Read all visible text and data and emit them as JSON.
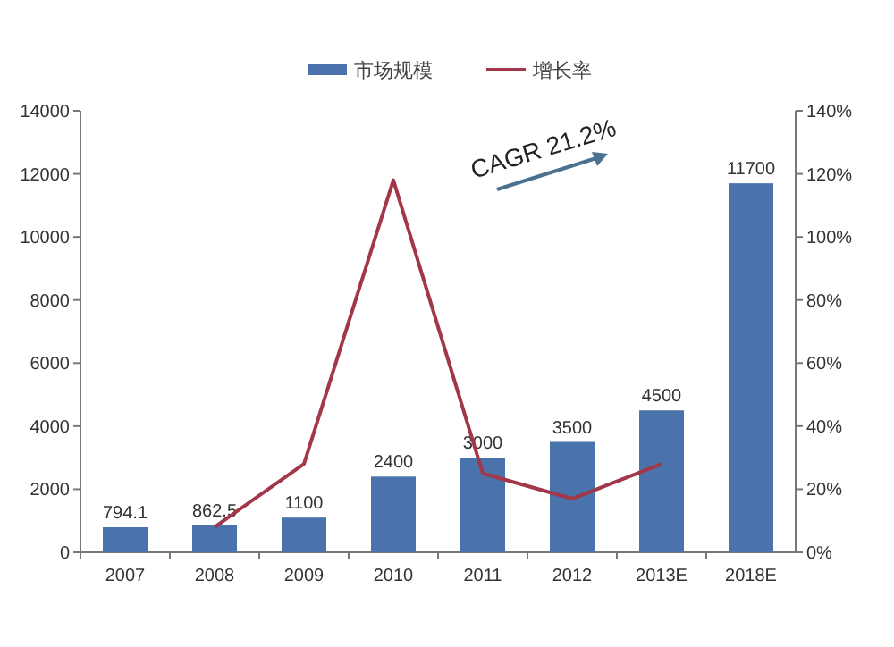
{
  "chart_data": {
    "type": "bar",
    "categories": [
      "2007",
      "2008",
      "2009",
      "2010",
      "2011",
      "2012",
      "2013E",
      "2018E"
    ],
    "series": [
      {
        "name": "市场规模",
        "color": "#4a72ab",
        "values": [
          794.1,
          862.5,
          1100,
          2400,
          3000,
          3500,
          4500,
          11700
        ],
        "value_labels": [
          "794.1",
          "862.5",
          "1100",
          "2400",
          "3000",
          "3500",
          "4500",
          "11700"
        ]
      },
      {
        "name": "增长率",
        "type": "line",
        "axis": "y2",
        "color": "#a3374a",
        "values": [
          null,
          8,
          28,
          118,
          25,
          17,
          28,
          null
        ]
      }
    ],
    "ylim": [
      0,
      14000
    ],
    "yticks": [
      0,
      2000,
      4000,
      6000,
      8000,
      10000,
      12000,
      14000
    ],
    "y2lim": [
      0,
      140
    ],
    "y2ticks": [
      {
        "value": 0,
        "label": "0%"
      },
      {
        "value": 20,
        "label": "20%"
      },
      {
        "value": 40,
        "label": "40%"
      },
      {
        "value": 60,
        "label": "60%"
      },
      {
        "value": 80,
        "label": "80%"
      },
      {
        "value": 100,
        "label": "100%"
      },
      {
        "value": 120,
        "label": "120%"
      },
      {
        "value": 140,
        "label": "140%"
      }
    ],
    "legend": "top",
    "annotations": [
      "CAGR 21.2%"
    ]
  }
}
